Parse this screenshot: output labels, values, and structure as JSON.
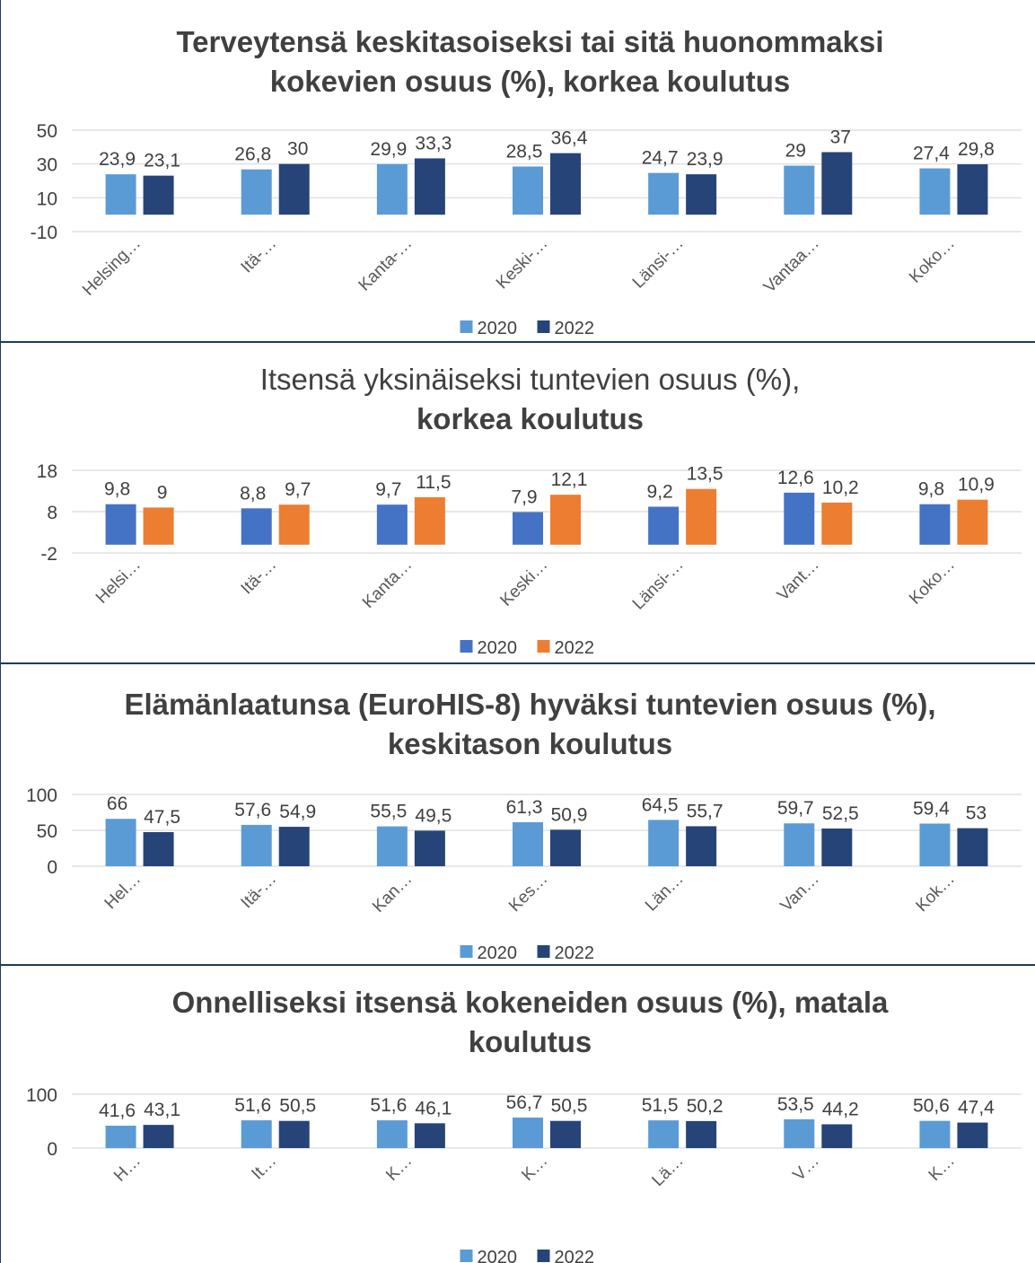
{
  "chart_data": [
    {
      "type": "bar",
      "title_lines": [
        "Terveytensä keskitasoiseksi tai sitä huonommaksi",
        "kokevien osuus (%), korkea koulutus"
      ],
      "title_bold": [
        true,
        true
      ],
      "categories": [
        "Helsing…",
        "Itä-…",
        "Kanta-…",
        "Keski-…",
        "Länsi-…",
        "Vantaa…",
        "Koko…"
      ],
      "yticks": [
        -10,
        10,
        30,
        50
      ],
      "ylim": [
        -10,
        50
      ],
      "grid": true,
      "legend_position": "bottom",
      "series": [
        {
          "name": "2020",
          "color": "#5b9bd5",
          "values": [
            23.9,
            26.8,
            29.9,
            28.5,
            24.7,
            29,
            27.4
          ],
          "labels": [
            "23,9",
            "26,8",
            "29,9",
            "28,5",
            "24,7",
            "29",
            "27,4"
          ]
        },
        {
          "name": "2022",
          "color": "#264478",
          "values": [
            23.1,
            30,
            33.3,
            36.4,
            23.9,
            37,
            29.8
          ],
          "labels": [
            "23,1",
            "30",
            "33,3",
            "36,4",
            "23,9",
            "37",
            "29,8"
          ]
        }
      ]
    },
    {
      "type": "bar",
      "title_lines": [
        "Itsensä yksinäiseksi tuntevien osuus (%),",
        "korkea koulutus"
      ],
      "title_bold": [
        false,
        true
      ],
      "categories": [
        "Helsi…",
        "Itä-…",
        "Kanta…",
        "Keski…",
        "Länsi-…",
        "Vant…",
        "Koko…"
      ],
      "yticks": [
        -2,
        8,
        18
      ],
      "ylim": [
        -2,
        18
      ],
      "grid": true,
      "legend_position": "bottom",
      "series": [
        {
          "name": "2020",
          "color": "#4472c4",
          "values": [
            9.8,
            8.8,
            9.7,
            7.9,
            9.2,
            12.6,
            9.8
          ],
          "labels": [
            "9,8",
            "8,8",
            "9,7",
            "7,9",
            "9,2",
            "12,6",
            "9,8"
          ]
        },
        {
          "name": "2022",
          "color": "#ed7d31",
          "values": [
            9,
            9.7,
            11.5,
            12.1,
            13.5,
            10.2,
            10.9
          ],
          "labels": [
            "9",
            "9,7",
            "11,5",
            "12,1",
            "13,5",
            "10,2",
            "10,9"
          ]
        }
      ]
    },
    {
      "type": "bar",
      "title_lines": [
        "Elämänlaatunsa (EuroHIS-8) hyväksi tuntevien osuus (%),",
        "keskitason koulutus"
      ],
      "title_bold": [
        true,
        true
      ],
      "categories": [
        "Hel…",
        "Itä-…",
        "Kan…",
        "Kes…",
        "Län…",
        "Van…",
        "Kok…"
      ],
      "yticks": [
        0,
        50,
        100
      ],
      "ylim": [
        0,
        100
      ],
      "grid": true,
      "legend_position": "bottom",
      "series": [
        {
          "name": "2020",
          "color": "#5b9bd5",
          "values": [
            66,
            57.6,
            55.5,
            61.3,
            64.5,
            59.7,
            59.4
          ],
          "labels": [
            "66",
            "57,6",
            "55,5",
            "61,3",
            "64,5",
            "59,7",
            "59,4"
          ]
        },
        {
          "name": "2022",
          "color": "#264478",
          "values": [
            47.5,
            54.9,
            49.5,
            50.9,
            55.7,
            52.5,
            53
          ],
          "labels": [
            "47,5",
            "54,9",
            "49,5",
            "50,9",
            "55,7",
            "52,5",
            "53"
          ]
        }
      ]
    },
    {
      "type": "bar",
      "title_lines": [
        "Onnelliseksi itsensä kokeneiden osuus (%), matala",
        "koulutus"
      ],
      "title_bold": [
        true,
        true
      ],
      "categories": [
        "H…",
        "It…",
        "K…",
        "K…",
        "Lä…",
        "V…",
        "K…"
      ],
      "yticks": [
        0,
        100
      ],
      "ylim": [
        0,
        100
      ],
      "grid": true,
      "legend_position": "bottom",
      "series": [
        {
          "name": "2020",
          "color": "#5b9bd5",
          "values": [
            41.6,
            51.6,
            51.6,
            56.7,
            51.5,
            53.5,
            50.6
          ],
          "labels": [
            "41,6",
            "51,6",
            "51,6",
            "56,7",
            "51,5",
            "53,5",
            "50,6"
          ]
        },
        {
          "name": "2022",
          "color": "#264478",
          "values": [
            43.1,
            50.5,
            46.1,
            50.5,
            50.2,
            44.2,
            47.4
          ],
          "labels": [
            "43,1",
            "50,5",
            "46,1",
            "50,5",
            "50,2",
            "44,2",
            "47,4"
          ]
        }
      ]
    }
  ]
}
